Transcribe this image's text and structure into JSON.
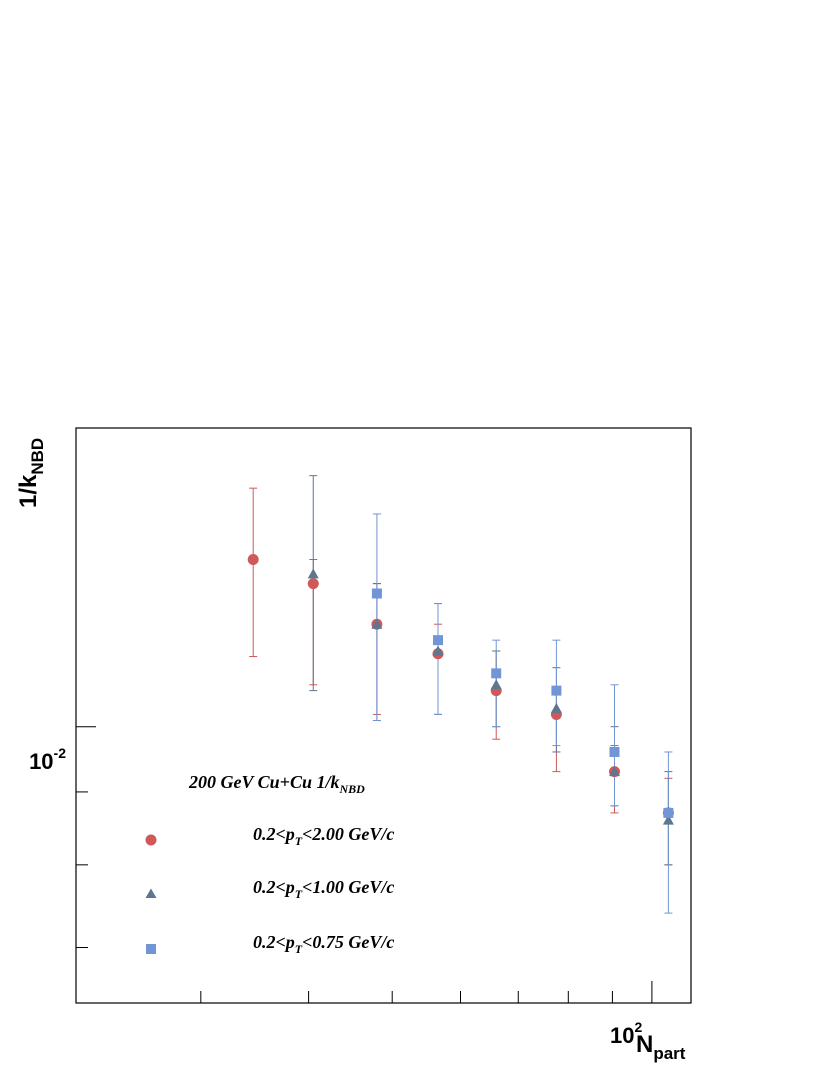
{
  "chart_data": {
    "type": "scatter",
    "title": "",
    "xlabel": {
      "main": "N",
      "sub": "part"
    },
    "ylabel": {
      "main": "1/k",
      "sub": "NBD"
    },
    "x_scale": "log",
    "y_scale": "log",
    "xlim": [
      21.5,
      111
    ],
    "ylim": [
      0.0064,
      0.0162
    ],
    "x_tick_label": {
      "base": "10",
      "exp": "2"
    },
    "y_tick_label": {
      "base": "10",
      "exp": "-2"
    },
    "grid": false,
    "legend": {
      "placement": "bottom-left",
      "title": {
        "main": "200 GeV Cu+Cu 1/k",
        "sub": "NBD"
      }
    },
    "series": [
      {
        "label": {
          "pre": "0.2<p",
          "sub": "T",
          "post": "<2.00 GeV/c"
        },
        "marker": "circle",
        "color": "#d05858",
        "points": [
          {
            "x": 34.5,
            "y": 0.0131,
            "lo": 0.0112,
            "hi": 0.0147
          },
          {
            "x": 40.5,
            "y": 0.0126,
            "lo": 0.0107,
            "hi": 0.0131
          },
          {
            "x": 48.0,
            "y": 0.0118,
            "lo": 0.0102,
            "hi": 0.0126
          },
          {
            "x": 56.5,
            "y": 0.01125,
            "lo": 0.0102,
            "hi": 0.0118
          },
          {
            "x": 66.0,
            "y": 0.0106,
            "lo": 0.0098,
            "hi": 0.0113
          },
          {
            "x": 77.5,
            "y": 0.0102,
            "lo": 0.0093,
            "hi": 0.0106
          },
          {
            "x": 90.5,
            "y": 0.0093,
            "lo": 0.0087,
            "hi": 0.0097
          },
          {
            "x": 104.5,
            "y": 0.0087,
            "lo": 0.008,
            "hi": 0.0092
          }
        ]
      },
      {
        "label": {
          "pre": "0.2<p",
          "sub": "T",
          "post": "<1.00 GeV/c"
        },
        "marker": "triangle",
        "color": "#5e7690",
        "points": [
          {
            "x": 40.5,
            "y": 0.0128,
            "lo": 0.0106,
            "hi": 0.015
          },
          {
            "x": 48.0,
            "y": 0.0118,
            "lo": 0.0101,
            "hi": 0.0126
          },
          {
            "x": 56.5,
            "y": 0.0113,
            "lo": 0.0102,
            "hi": 0.0122
          },
          {
            "x": 66.0,
            "y": 0.0107,
            "lo": 0.01,
            "hi": 0.0113
          },
          {
            "x": 77.5,
            "y": 0.0103,
            "lo": 0.0096,
            "hi": 0.011
          },
          {
            "x": 90.5,
            "y": 0.0093,
            "lo": 0.0088,
            "hi": 0.01
          },
          {
            "x": 104.5,
            "y": 0.0086,
            "lo": 0.008,
            "hi": 0.0093
          }
        ]
      },
      {
        "label": {
          "pre": "0.2<p",
          "sub": "T",
          "post": "<0.75 GeV/c"
        },
        "marker": "square",
        "color": "#7295d5",
        "points": [
          {
            "x": 48.0,
            "y": 0.0124,
            "lo": 0.0101,
            "hi": 0.0141
          },
          {
            "x": 56.5,
            "y": 0.0115,
            "lo": 0.0102,
            "hi": 0.0122
          },
          {
            "x": 66.0,
            "y": 0.0109,
            "lo": 0.01,
            "hi": 0.0115
          },
          {
            "x": 77.5,
            "y": 0.0106,
            "lo": 0.0097,
            "hi": 0.0115
          },
          {
            "x": 90.5,
            "y": 0.0096,
            "lo": 0.0088,
            "hi": 0.0107
          },
          {
            "x": 104.5,
            "y": 0.0087,
            "lo": 0.0074,
            "hi": 0.0096
          }
        ]
      }
    ]
  }
}
